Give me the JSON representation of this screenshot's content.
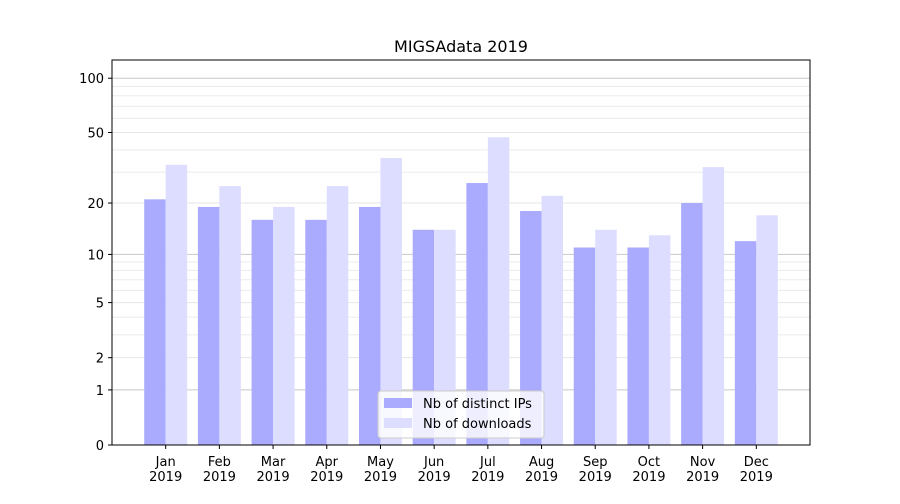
{
  "chart_data": {
    "type": "bar",
    "title": "MIGSAdata 2019",
    "xlabel": "",
    "ylabel": "",
    "yscale": "symlog (log10(1+y))",
    "ylim": [
      0,
      126
    ],
    "yticks": [
      0,
      1,
      2,
      5,
      10,
      20,
      50,
      100
    ],
    "grid": "horizontal, major and minor",
    "legend_position": "bottom-center",
    "categories": [
      "Jan\n2019",
      "Feb\n2019",
      "Mar\n2019",
      "Apr\n2019",
      "May\n2019",
      "Jun\n2019",
      "Jul\n2019",
      "Aug\n2019",
      "Sep\n2019",
      "Oct\n2019",
      "Nov\n2019",
      "Dec\n2019"
    ],
    "series": [
      {
        "name": "Nb of distinct IPs",
        "color": "#aaaaff",
        "values": [
          21,
          19,
          16,
          16,
          19,
          14,
          26,
          18,
          11,
          11,
          20,
          12
        ]
      },
      {
        "name": "Nb of downloads",
        "color": "#ddddff",
        "values": [
          33,
          25,
          19,
          25,
          36,
          14,
          47,
          22,
          14,
          13,
          32,
          17
        ]
      }
    ]
  }
}
